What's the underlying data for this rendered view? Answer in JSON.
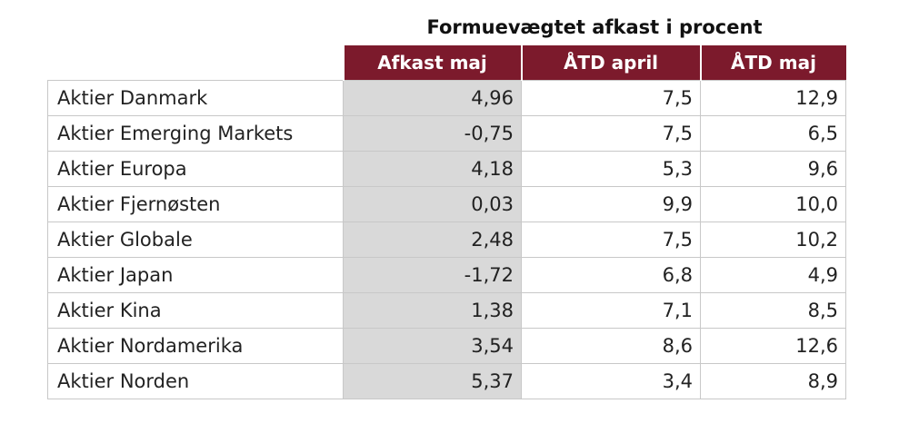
{
  "table": {
    "title": "Formuevægtet afkast i procent",
    "columns": [
      "Afkast maj",
      "ÅTD april",
      "ÅTD maj"
    ],
    "rows": [
      [
        "Aktier Danmark",
        "4,96",
        "7,5",
        "12,9"
      ],
      [
        "Aktier Emerging Markets",
        "-0,75",
        "7,5",
        "6,5"
      ],
      [
        "Aktier Europa",
        "4,18",
        "5,3",
        "9,6"
      ],
      [
        "Aktier Fjernøsten",
        "0,03",
        "9,9",
        "10,0"
      ],
      [
        "Aktier Globale",
        "2,48",
        "7,5",
        "10,2"
      ],
      [
        "Aktier Japan",
        "-1,72",
        "6,8",
        "4,9"
      ],
      [
        "Aktier Kina",
        "1,38",
        "7,1",
        "8,5"
      ],
      [
        "Aktier Nordamerika",
        "3,54",
        "8,6",
        "12,6"
      ],
      [
        "Aktier Norden",
        "5,37",
        "3,4",
        "8,9"
      ]
    ]
  }
}
